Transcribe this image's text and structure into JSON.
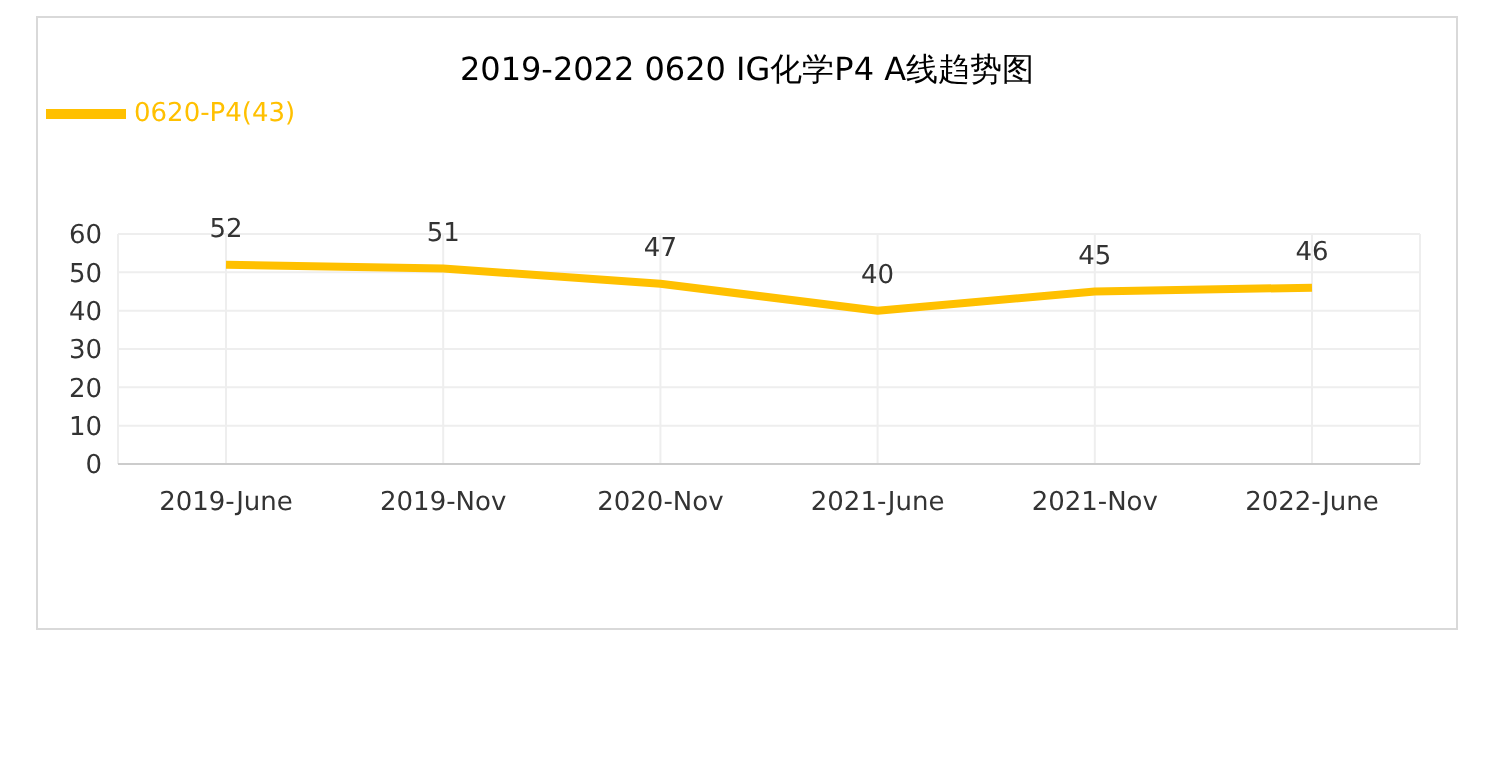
{
  "chart_data": {
    "type": "line",
    "title": "2019-2022 0620 IG化学P4 A线趋势图",
    "categories": [
      "2019-June",
      "2019-Nov",
      "2020-Nov",
      "2021-June",
      "2021-Nov",
      "2022-June"
    ],
    "series": [
      {
        "name": "0620-P4(43)",
        "color": "#ffc000",
        "values": [
          52,
          51,
          47,
          40,
          45,
          46
        ]
      }
    ],
    "ylim": [
      0,
      60
    ],
    "yticks": [
      0,
      10,
      20,
      30,
      40,
      50,
      60
    ],
    "grid": true,
    "legend": "top left",
    "data_labels": true,
    "marker": "none",
    "line_style": "solid"
  }
}
